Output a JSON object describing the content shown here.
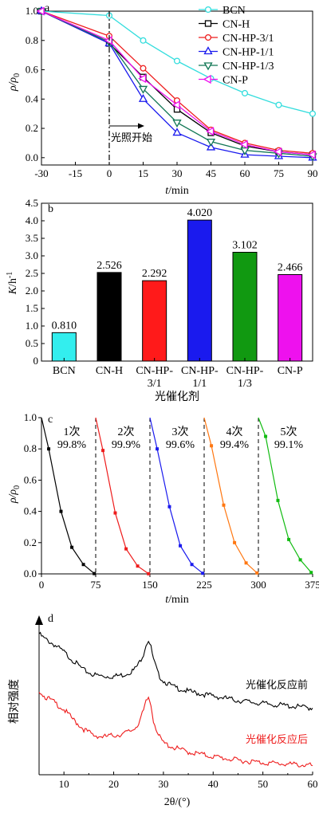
{
  "chart_data": [
    {
      "type": "line",
      "panel_label": "a",
      "xlabel_italic": "t",
      "xlabel_unit": "/min",
      "ylabel_italic": "ρ/ρ",
      "ylabel_sub": "0",
      "x": [
        -30,
        0,
        15,
        30,
        45,
        60,
        75,
        90
      ],
      "xticks": [
        "-30",
        "-15",
        "0",
        "15",
        "30",
        "45",
        "60",
        "75",
        "90"
      ],
      "xtick_values": [
        -30,
        -15,
        0,
        15,
        30,
        45,
        60,
        75,
        90
      ],
      "yticks": [
        "0.0",
        "0.2",
        "0.4",
        "0.6",
        "0.8",
        "1.0"
      ],
      "ytick_values": [
        0,
        0.2,
        0.4,
        0.6,
        0.8,
        1.0
      ],
      "xlim": [
        -30,
        90
      ],
      "ylim": [
        -0.05,
        1.0
      ],
      "light_on_x": 0,
      "annotation": "光照开始",
      "legend_position": "top-right",
      "series": [
        {
          "name": "BCN",
          "color": "#33dddd",
          "marker": "circle",
          "values": [
            1.0,
            0.97,
            0.8,
            0.66,
            0.54,
            0.44,
            0.36,
            0.3
          ]
        },
        {
          "name": "CN-H",
          "color": "#000000",
          "marker": "square",
          "values": [
            1.0,
            0.78,
            0.55,
            0.33,
            0.17,
            0.08,
            0.04,
            0.02
          ]
        },
        {
          "name": "CN-HP-3/1",
          "color": "#ee1c1c",
          "marker": "circle",
          "values": [
            1.0,
            0.83,
            0.61,
            0.39,
            0.19,
            0.1,
            0.05,
            0.03
          ]
        },
        {
          "name": "CN-HP-1/1",
          "color": "#1a1aee",
          "marker": "triangle-up",
          "values": [
            1.0,
            0.78,
            0.4,
            0.17,
            0.07,
            0.02,
            0.01,
            0.0
          ]
        },
        {
          "name": "CN-HP-1/3",
          "color": "#117755",
          "marker": "triangle-down",
          "values": [
            1.0,
            0.79,
            0.47,
            0.24,
            0.11,
            0.05,
            0.03,
            0.01
          ]
        },
        {
          "name": "CN-P",
          "color": "#ee11ee",
          "marker": "triangle-left",
          "values": [
            1.0,
            0.8,
            0.54,
            0.36,
            0.18,
            0.09,
            0.04,
            0.02
          ]
        }
      ]
    },
    {
      "type": "bar",
      "panel_label": "b",
      "categories": [
        {
          "line1": "BCN",
          "line2": ""
        },
        {
          "line1": "CN-H",
          "line2": ""
        },
        {
          "line1": "CN-HP-",
          "line2": "3/1"
        },
        {
          "line1": "CN-HP-",
          "line2": "1/1"
        },
        {
          "line1": "CN-HP-",
          "line2": "1/3"
        },
        {
          "line1": "CN-P",
          "line2": ""
        }
      ],
      "values": [
        0.81,
        2.526,
        2.292,
        4.02,
        3.102,
        2.466
      ],
      "value_labels": [
        "0.810",
        "2.526",
        "2.292",
        "4.020",
        "3.102",
        "2.466"
      ],
      "colors": [
        "#33eeee",
        "#000000",
        "#ff1a1a",
        "#1a1aee",
        "#119911",
        "#ee11ee"
      ],
      "xlabel": "光催化剂",
      "ylabel_italic": "K",
      "ylabel_unit": "/h",
      "ylabel_sup": "-1",
      "yticks": [
        "0",
        "0.5",
        "1.0",
        "1.5",
        "2.0",
        "2.5",
        "3.0",
        "3.5",
        "4.0",
        "4.5"
      ],
      "ytick_values": [
        0,
        0.5,
        1.0,
        1.5,
        2.0,
        2.5,
        3.0,
        3.5,
        4.0,
        4.5
      ],
      "ylim": [
        0,
        4.5
      ]
    },
    {
      "type": "line",
      "panel_label": "c",
      "xlabel_italic": "t",
      "xlabel_unit": "/min",
      "ylabel_italic": "ρ/ρ",
      "ylabel_sub": "0",
      "xticks": [
        "0",
        "75",
        "150",
        "225",
        "300",
        "375"
      ],
      "xtick_values": [
        0,
        75,
        150,
        225,
        300,
        375
      ],
      "yticks": [
        "0.0",
        "0.2",
        "0.4",
        "0.6",
        "0.8",
        "1.0"
      ],
      "ytick_values": [
        0,
        0.2,
        0.4,
        0.6,
        0.8,
        1.0
      ],
      "xlim": [
        0,
        375
      ],
      "ylim": [
        0,
        1.0
      ],
      "cycle_dividers": [
        75,
        150,
        225,
        300
      ],
      "cycles": [
        {
          "label": "1次",
          "efficiency": "99.8%",
          "color": "#000000",
          "x": [
            0,
            10,
            27,
            42,
            58,
            73
          ],
          "values": [
            1.0,
            0.8,
            0.4,
            0.17,
            0.06,
            0.002
          ]
        },
        {
          "label": "2次",
          "efficiency": "99.9%",
          "color": "#ee1c1c",
          "x": [
            75,
            85,
            102,
            117,
            133,
            148
          ],
          "values": [
            1.0,
            0.79,
            0.39,
            0.16,
            0.05,
            0.001
          ]
        },
        {
          "label": "3次",
          "efficiency": "99.6%",
          "color": "#1a1aee",
          "x": [
            150,
            160,
            177,
            192,
            208,
            223
          ],
          "values": [
            1.0,
            0.8,
            0.43,
            0.18,
            0.06,
            0.004
          ]
        },
        {
          "label": "4次",
          "efficiency": "99.4%",
          "color": "#ff7711",
          "x": [
            225,
            235,
            252,
            267,
            283,
            298
          ],
          "values": [
            1.0,
            0.82,
            0.44,
            0.2,
            0.07,
            0.006
          ]
        },
        {
          "label": "5次",
          "efficiency": "99.1%",
          "color": "#11bb11",
          "x": [
            300,
            310,
            327,
            342,
            358,
            373
          ],
          "values": [
            1.0,
            0.88,
            0.47,
            0.22,
            0.09,
            0.009
          ]
        }
      ]
    },
    {
      "type": "line",
      "panel_label": "d",
      "xlabel": "2θ/(°)",
      "ylabel": "相对强度",
      "xticks": [
        "10",
        "20",
        "30",
        "40",
        "50",
        "60"
      ],
      "xtick_values": [
        10,
        20,
        30,
        40,
        50,
        60
      ],
      "xlim": [
        5,
        60
      ],
      "ylim": [
        0,
        10
      ],
      "series": [
        {
          "name": "光催化反应前",
          "color": "#000000",
          "x": [
            5,
            6,
            8,
            10,
            12,
            14,
            16,
            18,
            20,
            22,
            24,
            25,
            26,
            26.5,
            27,
            27.5,
            28,
            29,
            30,
            32,
            35,
            40,
            45,
            50,
            55,
            60
          ],
          "values": [
            9.3,
            9.0,
            8.6,
            8.1,
            7.5,
            6.9,
            6.6,
            6.5,
            6.5,
            6.6,
            6.9,
            7.3,
            8.0,
            8.6,
            8.9,
            8.4,
            7.6,
            6.6,
            6.2,
            5.8,
            5.5,
            5.2,
            4.9,
            4.7,
            4.55,
            4.4
          ]
        },
        {
          "name": "光催化反应后",
          "color": "#ee1c1c",
          "x": [
            5,
            6,
            8,
            10,
            12,
            14,
            16,
            18,
            20,
            22,
            24,
            25,
            26,
            26.5,
            27,
            27.5,
            28,
            29,
            30,
            32,
            35,
            40,
            45,
            50,
            55,
            60
          ],
          "values": [
            5.6,
            5.2,
            4.8,
            4.3,
            3.6,
            3.0,
            2.6,
            2.5,
            2.6,
            2.7,
            3.0,
            3.4,
            4.2,
            4.8,
            5.1,
            4.6,
            3.6,
            2.6,
            2.1,
            1.8,
            1.5,
            1.2,
            0.95,
            0.8,
            0.7,
            0.6
          ]
        }
      ]
    }
  ]
}
